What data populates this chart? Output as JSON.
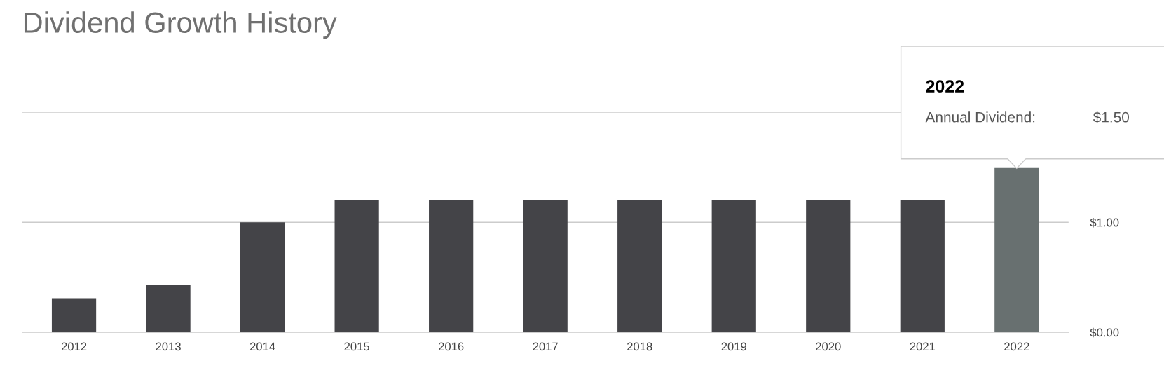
{
  "chart_data": {
    "type": "bar",
    "title": "Dividend Growth History",
    "categories": [
      "2012",
      "2013",
      "2014",
      "2015",
      "2016",
      "2017",
      "2018",
      "2019",
      "2020",
      "2021",
      "2022"
    ],
    "values": [
      0.31,
      0.43,
      1.0,
      1.2,
      1.2,
      1.2,
      1.2,
      1.2,
      1.2,
      1.2,
      1.5
    ],
    "colors": [
      "#444448",
      "#444448",
      "#444448",
      "#444448",
      "#444448",
      "#444448",
      "#444448",
      "#444448",
      "#444448",
      "#444448",
      "#687070"
    ],
    "ylim": [
      0,
      2
    ],
    "yticks": [
      {
        "value": 0,
        "label": "$0.00"
      },
      {
        "value": 1,
        "label": "$1.00"
      },
      {
        "value": 2,
        "label": null
      }
    ],
    "grid": "y",
    "annotations": [
      "2022",
      "Annual Dividend:",
      "$1.50"
    ]
  }
}
